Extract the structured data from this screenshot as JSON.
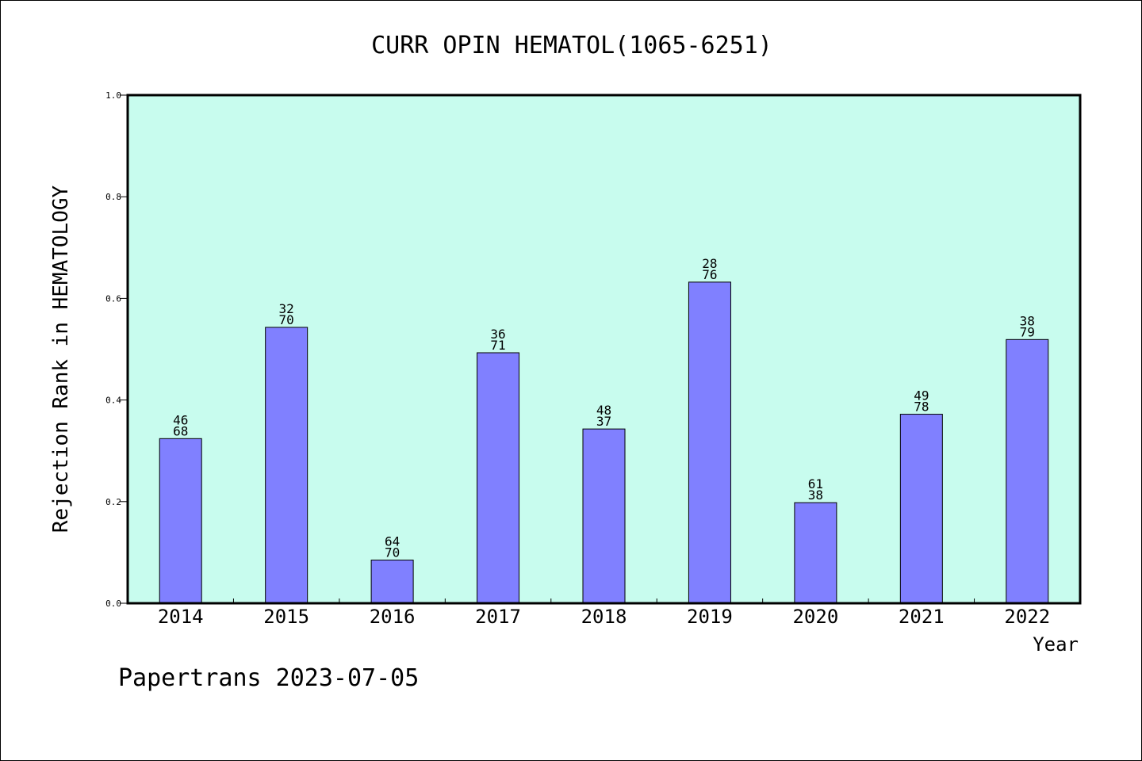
{
  "chart_data": {
    "type": "bar",
    "title": "CURR OPIN HEMATOL(1065-6251)",
    "xlabel": "Year",
    "ylabel": "Rejection Rank in HEMATOLOGY",
    "categories": [
      "2014",
      "2015",
      "2016",
      "2017",
      "2018",
      "2019",
      "2020",
      "2021",
      "2022"
    ],
    "values": [
      0.324,
      0.543,
      0.085,
      0.493,
      0.343,
      0.632,
      0.198,
      0.372,
      0.519
    ],
    "data_labels": [
      [
        "46",
        "68"
      ],
      [
        "32",
        "70"
      ],
      [
        "64",
        "70"
      ],
      [
        "36",
        "71"
      ],
      [
        "48",
        "37"
      ],
      [
        "28",
        "76"
      ],
      [
        "61",
        "38"
      ],
      [
        "49",
        "78"
      ],
      [
        "38",
        "79"
      ]
    ],
    "ylim": [
      0,
      1.0
    ],
    "yticks": [
      "0.0",
      "0.2",
      "0.4",
      "0.6",
      "0.8",
      "1.0"
    ],
    "grid": false,
    "colors": {
      "bar": "#8080ff",
      "plot_background": "#c8fcee",
      "axis": "#000000"
    }
  },
  "footer": {
    "text": "Papertrans 2023-07-05"
  }
}
